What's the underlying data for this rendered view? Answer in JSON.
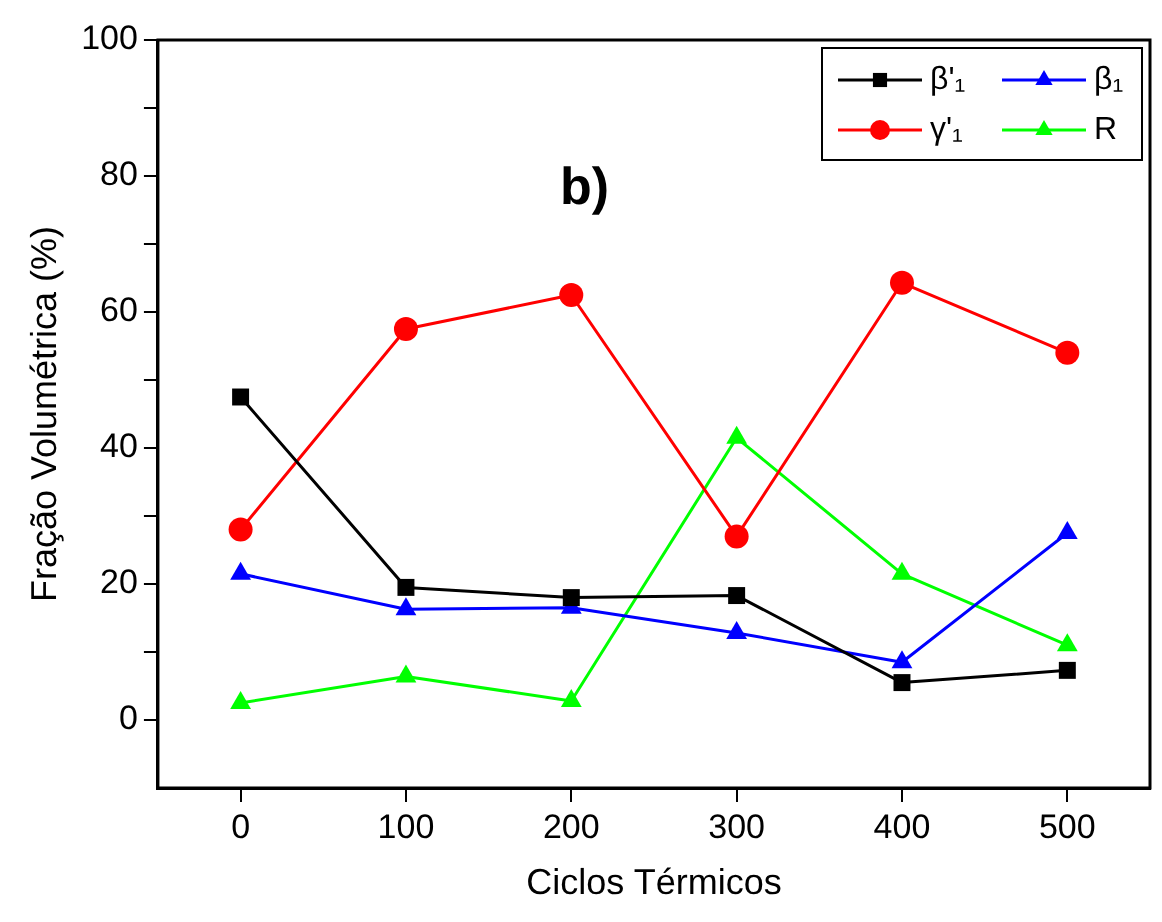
{
  "chart_data": {
    "type": "line",
    "xlabel": "Ciclos Térmicos",
    "ylabel": "Fração Volumétrica (%)",
    "annotations": [
      "b)"
    ],
    "x": [
      0,
      100,
      200,
      300,
      400,
      500
    ],
    "xlim": [
      -50,
      550
    ],
    "xticks": [
      0,
      100,
      200,
      300,
      400,
      500
    ],
    "ylim": [
      -10,
      100
    ],
    "yticks": [
      0,
      {
        "value": 10,
        "label": null
      },
      20,
      {
        "value": 30,
        "label": null
      },
      40,
      {
        "value": 50,
        "label": null
      },
      60,
      {
        "value": 70,
        "label": null
      },
      80,
      {
        "value": 90,
        "label": null
      },
      100
    ],
    "grid": false,
    "legend": "top right",
    "line_style": "solid",
    "series": [
      {
        "name": "β'₁",
        "color": "#000000",
        "marker": "square",
        "values": [
          47.5,
          19.5,
          18,
          18.3,
          5.5,
          7.3
        ]
      },
      {
        "name": "γ'₁",
        "color": "#ff0000",
        "marker": "circle",
        "values": [
          28,
          57.5,
          62.5,
          27,
          64.3,
          54
        ]
      },
      {
        "name": "β₁",
        "color": "#0000ff",
        "marker": "triangle",
        "values": [
          21.5,
          16.3,
          16.5,
          12.8,
          8.5,
          27.5
        ]
      },
      {
        "name": "R",
        "color": "#00ff00",
        "marker": "triangle",
        "values": [
          2.5,
          6.4,
          2.8,
          41.5,
          21.5,
          11
        ]
      }
    ]
  }
}
